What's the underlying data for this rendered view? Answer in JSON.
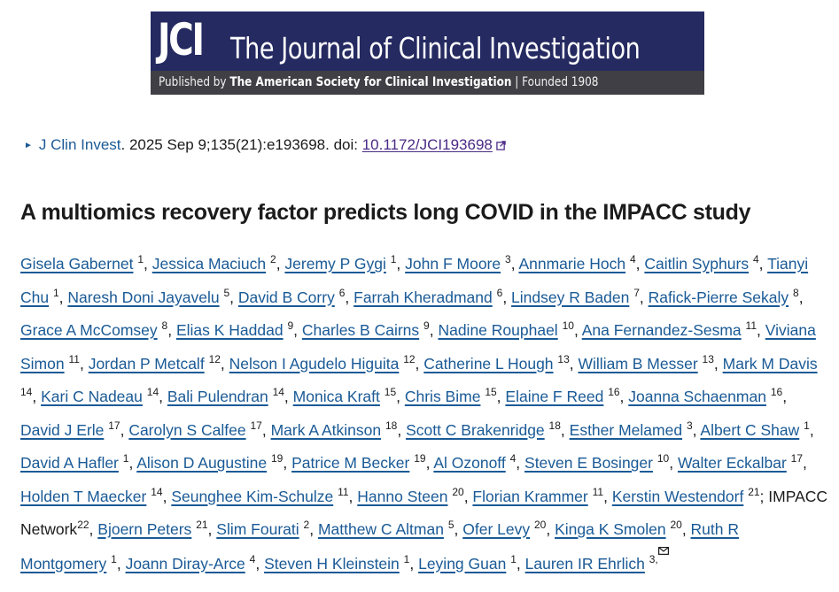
{
  "banner": {
    "logo": "JCI",
    "title": "The Journal of Clinical Investigation",
    "published_by_prefix": "Published by",
    "publisher": "The American Society for Clinical Investigation",
    "separator": "|",
    "founded": "Founded 1908",
    "colors": {
      "top": "#252a61",
      "bottom": "#3f3f45"
    }
  },
  "citation": {
    "journal": "J Clin Invest",
    "details": ". 2025 Sep 9;135(21):e193698. doi: ",
    "doi": "10.1172/JCI193698",
    "link_color": "#1a5a96",
    "doi_color": "#4b2a85"
  },
  "article": {
    "title": "A multiomics recovery factor predicts long COVID in the IMPACC study"
  },
  "authors": [
    {
      "name": "Gisela Gabernet",
      "aff": "1"
    },
    {
      "name": "Jessica Maciuch",
      "aff": "2"
    },
    {
      "name": "Jeremy P Gygi",
      "aff": "1"
    },
    {
      "name": "John F Moore",
      "aff": "3"
    },
    {
      "name": "Annmarie Hoch",
      "aff": "4"
    },
    {
      "name": "Caitlin Syphurs",
      "aff": "4"
    },
    {
      "name": "Tianyi Chu",
      "aff": "1"
    },
    {
      "name": "Naresh Doni Jayavelu",
      "aff": "5"
    },
    {
      "name": "David B Corry",
      "aff": "6"
    },
    {
      "name": "Farrah Kheradmand",
      "aff": "6"
    },
    {
      "name": "Lindsey R Baden",
      "aff": "7"
    },
    {
      "name": "Rafick-Pierre Sekaly",
      "aff": "8"
    },
    {
      "name": "Grace A McComsey",
      "aff": "8"
    },
    {
      "name": "Elias K Haddad",
      "aff": "9"
    },
    {
      "name": "Charles B Cairns",
      "aff": "9"
    },
    {
      "name": "Nadine Rouphael",
      "aff": "10"
    },
    {
      "name": "Ana Fernandez-Sesma",
      "aff": "11"
    },
    {
      "name": "Viviana Simon",
      "aff": "11"
    },
    {
      "name": "Jordan P Metcalf",
      "aff": "12"
    },
    {
      "name": "Nelson I Agudelo Higuita",
      "aff": "12"
    },
    {
      "name": "Catherine L Hough",
      "aff": "13"
    },
    {
      "name": "William B Messer",
      "aff": "13"
    },
    {
      "name": "Mark M Davis",
      "aff": "14"
    },
    {
      "name": "Kari C Nadeau",
      "aff": "14"
    },
    {
      "name": "Bali Pulendran",
      "aff": "14"
    },
    {
      "name": "Monica Kraft",
      "aff": "15"
    },
    {
      "name": "Chris Bime",
      "aff": "15"
    },
    {
      "name": "Elaine F Reed",
      "aff": "16"
    },
    {
      "name": "Joanna Schaenman",
      "aff": "16"
    },
    {
      "name": "David J Erle",
      "aff": "17"
    },
    {
      "name": "Carolyn S Calfee",
      "aff": "17"
    },
    {
      "name": "Mark A Atkinson",
      "aff": "18"
    },
    {
      "name": "Scott C Brakenridge",
      "aff": "18"
    },
    {
      "name": "Esther Melamed",
      "aff": "3"
    },
    {
      "name": "Albert C Shaw",
      "aff": "1"
    },
    {
      "name": "David A Hafler",
      "aff": "1"
    },
    {
      "name": "Alison D Augustine",
      "aff": "19"
    },
    {
      "name": "Patrice M Becker",
      "aff": "19"
    },
    {
      "name": "Al Ozonoff",
      "aff": "4"
    },
    {
      "name": "Steven E Bosinger",
      "aff": "10"
    },
    {
      "name": "Walter Eckalbar",
      "aff": "17"
    },
    {
      "name": "Holden T Maecker",
      "aff": "14"
    },
    {
      "name": "Seunghee Kim-Schulze",
      "aff": "11"
    },
    {
      "name": "Hanno Steen",
      "aff": "20"
    },
    {
      "name": "Florian Krammer",
      "aff": "11"
    },
    {
      "name": "Kerstin Westendorf",
      "aff": "21"
    },
    {
      "name": "IMPACC Network",
      "aff": "22",
      "group": true
    },
    {
      "name": "Bjoern Peters",
      "aff": "21"
    },
    {
      "name": "Slim Fourati",
      "aff": "2"
    },
    {
      "name": "Matthew C Altman",
      "aff": "5"
    },
    {
      "name": "Ofer Levy",
      "aff": "20"
    },
    {
      "name": "Kinga K Smolen",
      "aff": "20"
    },
    {
      "name": "Ruth R Montgomery",
      "aff": "1"
    },
    {
      "name": "Joann Diray-Arce",
      "aff": "4"
    },
    {
      "name": "Steven H Kleinstein",
      "aff": "1"
    },
    {
      "name": "Leying Guan",
      "aff": "1"
    },
    {
      "name": "Lauren IR Ehrlich",
      "aff": "3,",
      "corresponding": true
    }
  ],
  "icons": {
    "bullet": "triangle-right-icon",
    "doi_external": "external-link-icon",
    "corresponding": "envelope-icon"
  }
}
